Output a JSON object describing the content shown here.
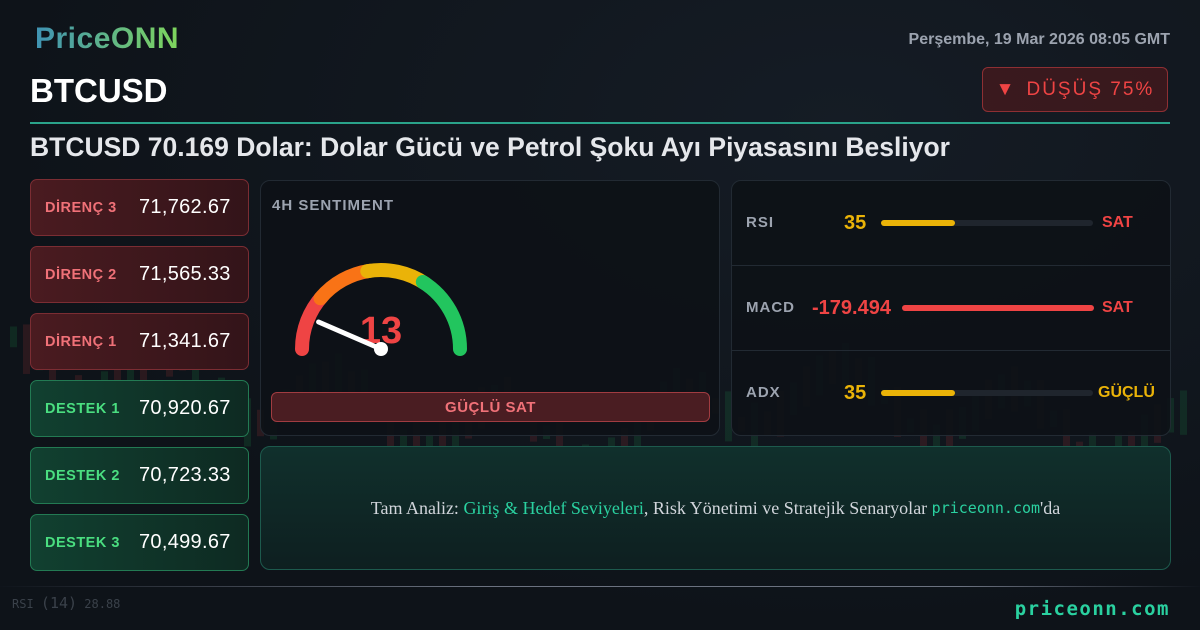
{
  "brand": {
    "logo": "PriceONN",
    "footer": "priceonn.com"
  },
  "header": {
    "date": "Perşembe, 19 Mar 2026 08:05 GMT",
    "symbol": "BTCUSD",
    "trend": {
      "icon": "triangle-down-icon",
      "label": "DÜŞÜŞ 75%"
    },
    "headline": "BTCUSD 70.169 Dolar: Dolar Gücü ve Petrol Şoku Ayı Piyasasını Besliyor"
  },
  "levels": [
    {
      "label": "DİRENÇ 3",
      "value": "71,762.67",
      "type": "resistance"
    },
    {
      "label": "DİRENÇ 2",
      "value": "71,565.33",
      "type": "resistance"
    },
    {
      "label": "DİRENÇ 1",
      "value": "71,341.67",
      "type": "resistance"
    },
    {
      "label": "DESTEK 1",
      "value": "70,920.67",
      "type": "support"
    },
    {
      "label": "DESTEK 2",
      "value": "70,723.33",
      "type": "support"
    },
    {
      "label": "DESTEK 3",
      "value": "70,499.67",
      "type": "support"
    }
  ],
  "sentiment": {
    "title": "4H SENTIMENT",
    "value": "13",
    "score": 13,
    "max": 100,
    "label": "GÜÇLÜ SAT"
  },
  "indicators": [
    {
      "name": "RSI",
      "value": "35",
      "fill_pct": 35,
      "signal": "SAT",
      "value_color": "#eab308",
      "bar_color": "#eab308",
      "signal_color": "#ef4444"
    },
    {
      "name": "MACD",
      "value": "-179.494",
      "fill_pct": 100,
      "signal": "SAT",
      "value_color": "#ef4444",
      "bar_color": "#ef4444",
      "signal_color": "#ef4444"
    },
    {
      "name": "ADX",
      "value": "35",
      "fill_pct": 35,
      "signal": "GÜÇLÜ",
      "value_color": "#eab308",
      "bar_color": "#eab308",
      "signal_color": "#eab308"
    }
  ],
  "cta": {
    "prefix": "Tam Analiz: ",
    "highlight": "Giriş & Hedef Seviyeleri",
    "middle": ", Risk Yönetimi ve Stratejik Senaryolar ",
    "link": "priceonn.com",
    "suffix": "'da"
  },
  "background_chart": {
    "indicator_label": "RSI",
    "indicator_period": "(14)",
    "indicator_value": "28.88"
  },
  "colors": {
    "accent": "#2ad1a0",
    "bearish": "#ef4444",
    "bullish": "#4ade80",
    "neutral": "#eab308"
  }
}
